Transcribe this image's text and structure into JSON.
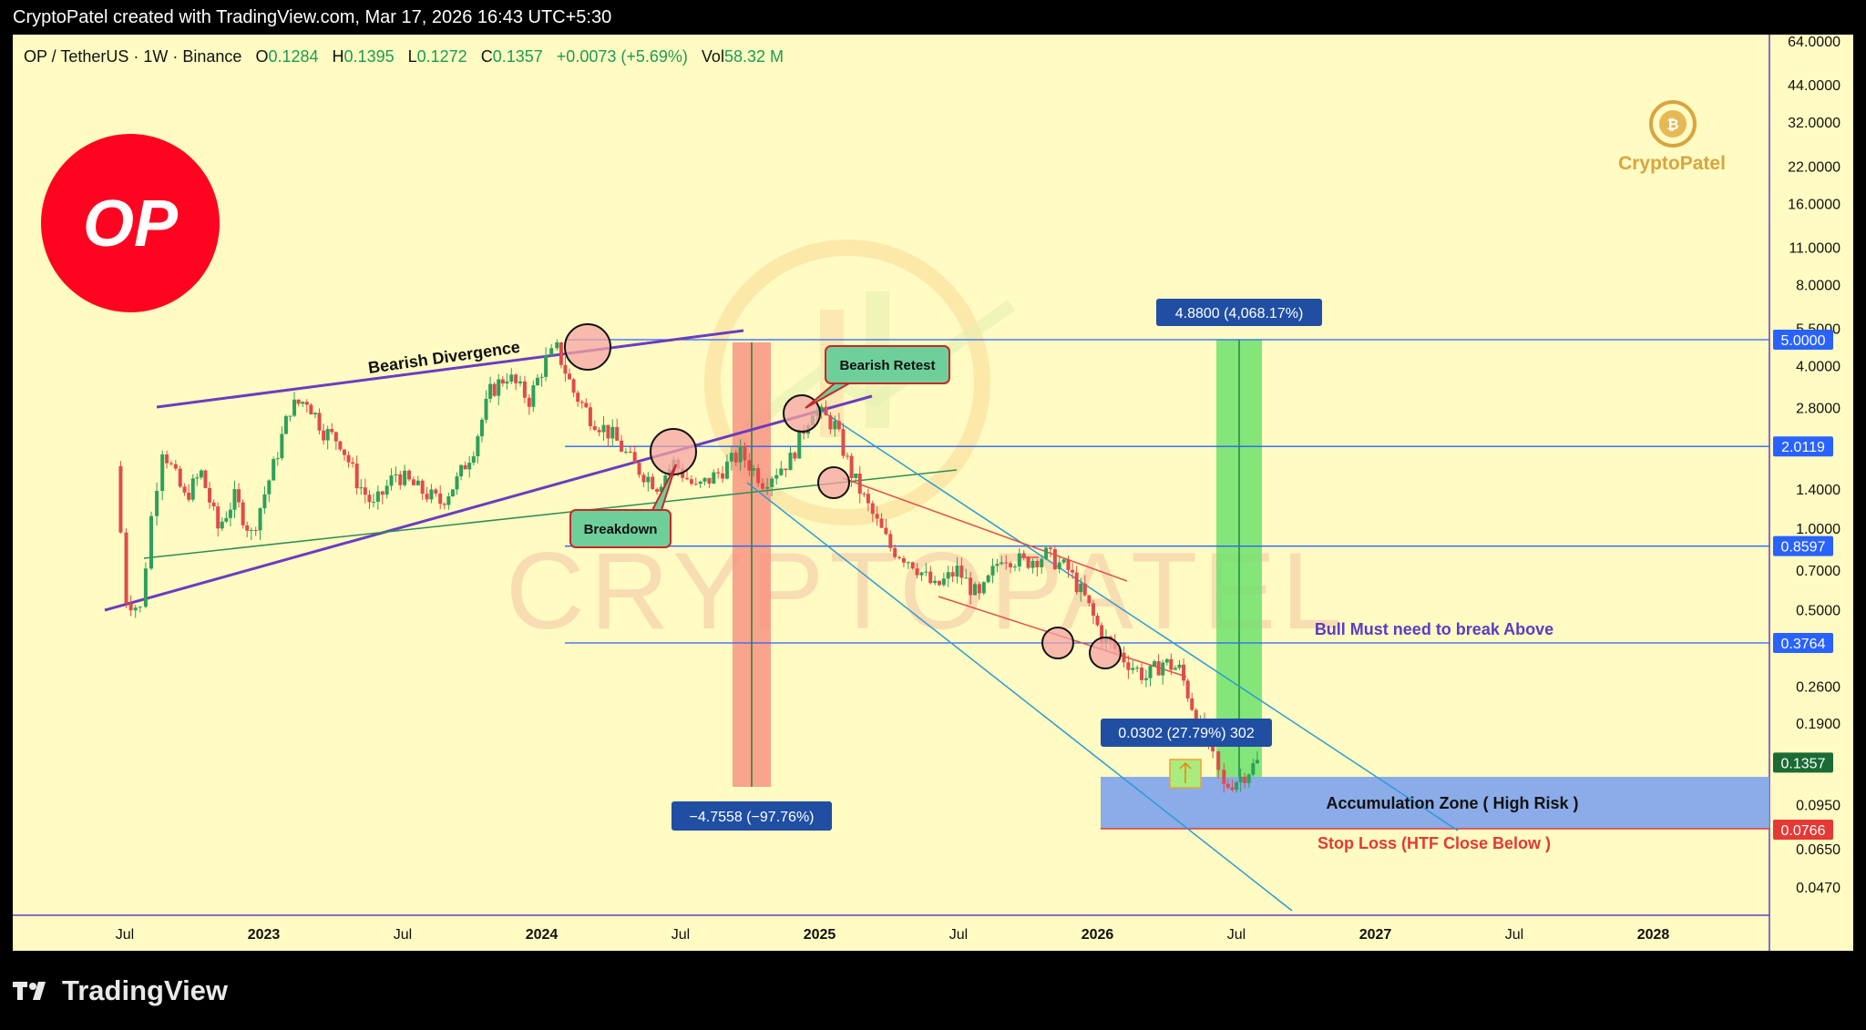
{
  "header": {
    "credit": "CryptoPatel created with TradingView.com, Mar 17, 2026 16:43 UTC+5:30"
  },
  "legend": {
    "symbol": "OP / TetherUS · 1W · Binance",
    "o_label": "O",
    "o_value": "0.1284",
    "h_label": "H",
    "h_value": "0.1395",
    "l_label": "L",
    "l_value": "0.1272",
    "c_label": "C",
    "c_value": "0.1357",
    "change": "+0.0073 (+5.69%)",
    "vol_label": "Vol",
    "vol_value": "58.32 M"
  },
  "logo": {
    "text": "OP",
    "color": "#ff0420"
  },
  "watermark": {
    "brand": "CryptoPatel",
    "big": "CRYPTOPATEL"
  },
  "colors": {
    "background": "#fffbc2",
    "up": "#2ea05a",
    "down": "#e04b4b",
    "purple": "#6a3dc0",
    "blue_line": "#2962ff",
    "green_box": "#6ee26b",
    "red_box": "#f78f7e",
    "zone": "#7ea3ec"
  },
  "annotations": {
    "bearish_divergence": "Bearish Divergence",
    "breakdown": "Breakdown",
    "bearish_retest": "Bearish Retest",
    "bull_must": "Bull Must need to break Above",
    "accumulation": "Accumulation Zone ( High Risk )",
    "stop_loss": "Stop Loss (HTF Close Below )",
    "drop_measure": "−4.7558 (−97.76%)",
    "rise_measure": "4.8800 (4,068.17%)",
    "small_measure": "0.0302 (27.79%) 302"
  },
  "footer": {
    "brand": "TradingView"
  },
  "chart_data": {
    "type": "candlestick",
    "y_scale": "log",
    "y_ticks": [
      "64.0000",
      "44.0000",
      "32.0000",
      "22.0000",
      "16.0000",
      "11.0000",
      "8.0000",
      "5.5000",
      "4.0000",
      "2.8000",
      "1.4000",
      "1.0000",
      "0.7000",
      "0.5000",
      "0.2600",
      "0.1900",
      "0.0950",
      "0.0650",
      "0.0470"
    ],
    "x_ticks": [
      "Jul",
      "2023",
      "Jul",
      "2024",
      "Jul",
      "2025",
      "Jul",
      "2026",
      "Jul",
      "2027",
      "Jul",
      "2028"
    ],
    "price_tags": [
      {
        "value": "5.0000",
        "color": "#2962ff"
      },
      {
        "value": "2.0119",
        "color": "#2962ff"
      },
      {
        "value": "0.8597",
        "color": "#2962ff"
      },
      {
        "value": "0.3764",
        "color": "#2962ff"
      },
      {
        "value": "0.1357",
        "color": "#1a6b35"
      },
      {
        "value": "0.0766",
        "color": "#e53935"
      }
    ],
    "horizontal_levels": [
      5.0,
      2.0119,
      0.8597,
      0.3764
    ],
    "zone": {
      "top": 0.0766,
      "bottom_label": "0.0766",
      "top_price": 0.115
    },
    "price_path": [
      [
        0.35,
        1.7
      ],
      [
        0.55,
        0.55
      ],
      [
        0.8,
        0.5
      ],
      [
        1.0,
        1.1
      ],
      [
        1.2,
        2.0
      ],
      [
        1.6,
        1.3
      ],
      [
        1.9,
        1.6
      ],
      [
        2.2,
        1.0
      ],
      [
        2.5,
        1.3
      ],
      [
        2.8,
        0.95
      ],
      [
        3.2,
        1.7
      ],
      [
        3.5,
        2.8
      ],
      [
        3.8,
        3.0
      ],
      [
        4.1,
        2.3
      ],
      [
        4.4,
        2.1
      ],
      [
        4.7,
        1.5
      ],
      [
        5.0,
        1.2
      ],
      [
        5.4,
        1.6
      ],
      [
        5.8,
        1.4
      ],
      [
        6.2,
        1.25
      ],
      [
        6.5,
        1.5
      ],
      [
        6.8,
        2.0
      ],
      [
        7.1,
        3.2
      ],
      [
        7.4,
        3.7
      ],
      [
        7.8,
        3.0
      ],
      [
        8.1,
        4.2
      ],
      [
        8.3,
        4.6
      ],
      [
        8.6,
        3.2
      ],
      [
        8.9,
        2.6
      ],
      [
        9.3,
        2.2
      ],
      [
        9.7,
        1.7
      ],
      [
        10.1,
        1.45
      ],
      [
        10.4,
        1.75
      ],
      [
        10.8,
        1.4
      ],
      [
        11.2,
        1.6
      ],
      [
        11.6,
        1.9
      ],
      [
        12.0,
        1.5
      ],
      [
        12.5,
        1.8
      ],
      [
        12.9,
        2.8
      ],
      [
        13.3,
        2.4
      ],
      [
        13.6,
        1.6
      ],
      [
        13.9,
        1.2
      ],
      [
        14.3,
        0.85
      ],
      [
        14.7,
        0.75
      ],
      [
        15.1,
        0.6
      ],
      [
        15.5,
        0.7
      ],
      [
        15.9,
        0.55
      ],
      [
        16.3,
        0.8
      ],
      [
        16.7,
        0.75
      ],
      [
        17.1,
        0.8
      ],
      [
        17.5,
        0.7
      ],
      [
        17.8,
        0.55
      ],
      [
        18.1,
        0.4
      ],
      [
        18.5,
        0.33
      ],
      [
        18.9,
        0.28
      ],
      [
        19.2,
        0.32
      ],
      [
        19.5,
        0.3
      ],
      [
        19.8,
        0.2
      ],
      [
        20.1,
        0.14
      ],
      [
        20.3,
        0.11
      ],
      [
        20.6,
        0.12
      ],
      [
        20.9,
        0.1357
      ]
    ]
  }
}
